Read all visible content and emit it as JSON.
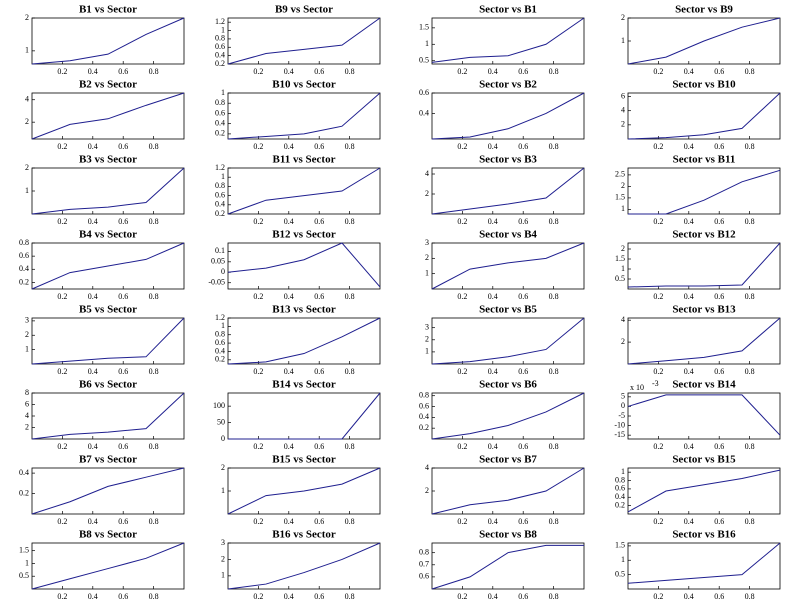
{
  "chart_data": [
    {
      "type": "line",
      "title": "B1 vs Sector",
      "x": [
        0,
        0.25,
        0.5,
        0.75,
        1
      ],
      "values": [
        0.6,
        0.7,
        0.9,
        1.5,
        2
      ],
      "color": "#1f1f8f",
      "xlim": [
        0,
        1
      ],
      "xticks": [
        0.2,
        0.4,
        0.6,
        0.8
      ],
      "ylim": [
        0.6,
        2
      ],
      "yticks": [
        1,
        2
      ]
    },
    {
      "type": "line",
      "title": "B2 vs Sector",
      "x": [
        0,
        0.25,
        0.5,
        0.75,
        1
      ],
      "values": [
        0.5,
        1.8,
        2.3,
        3.5,
        4.6
      ],
      "color": "#1f1f8f",
      "xlim": [
        0,
        1
      ],
      "xticks": [
        0.2,
        0.4,
        0.6,
        0.8
      ],
      "ylim": [
        0.5,
        4.6
      ],
      "yticks": [
        2,
        4
      ]
    },
    {
      "type": "line",
      "title": "B3 vs Sector",
      "x": [
        0,
        0.25,
        0.5,
        0.75,
        1
      ],
      "values": [
        0,
        0.2,
        0.3,
        0.5,
        2
      ],
      "color": "#1f1f8f",
      "xlim": [
        0,
        1
      ],
      "xticks": [
        0.2,
        0.4,
        0.6,
        0.8
      ],
      "ylim": [
        0,
        2
      ],
      "yticks": [
        1,
        2
      ]
    },
    {
      "type": "line",
      "title": "B4 vs Sector",
      "x": [
        0,
        0.25,
        0.5,
        0.75,
        1
      ],
      "values": [
        0.1,
        0.35,
        0.45,
        0.55,
        0.8
      ],
      "color": "#1f1f8f",
      "xlim": [
        0,
        1
      ],
      "xticks": [
        0.2,
        0.4,
        0.6,
        0.8
      ],
      "ylim": [
        0.1,
        0.8
      ],
      "yticks": [
        0.2,
        0.4,
        0.6,
        0.8
      ]
    },
    {
      "type": "line",
      "title": "B5 vs Sector",
      "x": [
        0,
        0.25,
        0.5,
        0.75,
        1
      ],
      "values": [
        0,
        0.2,
        0.4,
        0.5,
        3.2
      ],
      "color": "#1f1f8f",
      "xlim": [
        0,
        1
      ],
      "xticks": [
        0.2,
        0.4,
        0.6,
        0.8
      ],
      "ylim": [
        0,
        3.2
      ],
      "yticks": [
        1,
        2,
        3
      ]
    },
    {
      "type": "line",
      "title": "B6 vs Sector",
      "x": [
        0,
        0.25,
        0.5,
        0.75,
        1
      ],
      "values": [
        0,
        0.8,
        1.2,
        1.8,
        8
      ],
      "color": "#1f1f8f",
      "xlim": [
        0,
        1
      ],
      "xticks": [
        0.2,
        0.4,
        0.6,
        0.8
      ],
      "ylim": [
        0,
        8
      ],
      "yticks": [
        2,
        4,
        6,
        8
      ]
    },
    {
      "type": "line",
      "title": "B7 vs Sector",
      "x": [
        0,
        0.25,
        0.5,
        0.75,
        1
      ],
      "values": [
        0,
        0.12,
        0.27,
        0.36,
        0.45
      ],
      "color": "#1f1f8f",
      "xlim": [
        0,
        1
      ],
      "xticks": [
        0.2,
        0.4,
        0.6,
        0.8
      ],
      "ylim": [
        0,
        0.45
      ],
      "yticks": [
        0.2,
        0.4
      ]
    },
    {
      "type": "line",
      "title": "B8 vs Sector",
      "x": [
        0,
        0.25,
        0.5,
        0.75,
        1
      ],
      "values": [
        0,
        0.4,
        0.8,
        1.2,
        1.8
      ],
      "color": "#1f1f8f",
      "xlim": [
        0,
        1
      ],
      "xticks": [
        0.2,
        0.4,
        0.6,
        0.8
      ],
      "ylim": [
        0,
        1.8
      ],
      "yticks": [
        0.5,
        1,
        1.5
      ]
    },
    {
      "type": "line",
      "title": "B9 vs Sector",
      "x": [
        0,
        0.25,
        0.5,
        0.75,
        1
      ],
      "values": [
        0.2,
        0.45,
        0.55,
        0.65,
        1.3
      ],
      "color": "#1f1f8f",
      "xlim": [
        0,
        1
      ],
      "xticks": [
        0.2,
        0.4,
        0.6,
        0.8
      ],
      "ylim": [
        0.2,
        1.3
      ],
      "yticks": [
        0.2,
        0.4,
        0.6,
        0.8,
        1,
        1.2
      ]
    },
    {
      "type": "line",
      "title": "B10 vs Sector",
      "x": [
        0,
        0.25,
        0.5,
        0.75,
        1
      ],
      "values": [
        0.1,
        0.15,
        0.2,
        0.35,
        1
      ],
      "color": "#1f1f8f",
      "xlim": [
        0,
        1
      ],
      "xticks": [
        0.2,
        0.4,
        0.6,
        0.8
      ],
      "ylim": [
        0.1,
        1
      ],
      "yticks": [
        0.2,
        0.4,
        0.6,
        0.8,
        1
      ]
    },
    {
      "type": "line",
      "title": "B11 vs Sector",
      "x": [
        0,
        0.25,
        0.5,
        0.75,
        1
      ],
      "values": [
        0.2,
        0.5,
        0.6,
        0.7,
        1.2
      ],
      "color": "#1f1f8f",
      "xlim": [
        0,
        1
      ],
      "xticks": [
        0.2,
        0.4,
        0.6,
        0.8
      ],
      "ylim": [
        0.2,
        1.2
      ],
      "yticks": [
        0.2,
        0.4,
        0.6,
        0.8,
        1,
        1.2
      ]
    },
    {
      "type": "line",
      "title": "B12 vs Sector",
      "x": [
        0,
        0.25,
        0.5,
        0.75,
        1
      ],
      "values": [
        0,
        0.02,
        0.06,
        0.14,
        -0.07
      ],
      "color": "#1f1f8f",
      "xlim": [
        0,
        1
      ],
      "xticks": [
        0.2,
        0.4,
        0.6,
        0.8
      ],
      "ylim": [
        -0.08,
        0.14
      ],
      "yticks": [
        -0.05,
        0,
        0.05,
        0.1
      ]
    },
    {
      "type": "line",
      "title": "B13 vs Sector",
      "x": [
        0,
        0.25,
        0.5,
        0.75,
        1
      ],
      "values": [
        0.1,
        0.15,
        0.35,
        0.75,
        1.2
      ],
      "color": "#1f1f8f",
      "xlim": [
        0,
        1
      ],
      "xticks": [
        0.2,
        0.4,
        0.6,
        0.8
      ],
      "ylim": [
        0.1,
        1.2
      ],
      "yticks": [
        0.2,
        0.4,
        0.6,
        0.8,
        1,
        1.2
      ]
    },
    {
      "type": "line",
      "title": "B14 vs Sector",
      "x": [
        0,
        0.25,
        0.5,
        0.75,
        1
      ],
      "values": [
        0,
        0,
        0,
        0,
        140
      ],
      "color": "#1f1f8f",
      "xlim": [
        0,
        1
      ],
      "xticks": [
        0.2,
        0.4,
        0.6,
        0.8
      ],
      "ylim": [
        0,
        140
      ],
      "yticks": [
        0,
        50,
        100
      ]
    },
    {
      "type": "line",
      "title": "B15 vs Sector",
      "x": [
        0,
        0.25,
        0.5,
        0.75,
        1
      ],
      "values": [
        0,
        0.8,
        1,
        1.3,
        2
      ],
      "color": "#1f1f8f",
      "xlim": [
        0,
        1
      ],
      "xticks": [
        0.2,
        0.4,
        0.6,
        0.8
      ],
      "ylim": [
        0,
        2
      ],
      "yticks": [
        1,
        2
      ]
    },
    {
      "type": "line",
      "title": "B16 vs Sector",
      "x": [
        0,
        0.25,
        0.5,
        0.75,
        1
      ],
      "values": [
        0.2,
        0.5,
        1.2,
        2,
        3
      ],
      "color": "#1f1f8f",
      "xlim": [
        0,
        1
      ],
      "xticks": [
        0.2,
        0.4,
        0.6,
        0.8
      ],
      "ylim": [
        0.2,
        3
      ],
      "yticks": [
        1,
        2,
        3
      ]
    },
    {
      "type": "line",
      "title": "Sector vs B1",
      "x": [
        0,
        0.25,
        0.5,
        0.75,
        1
      ],
      "values": [
        0.45,
        0.6,
        0.65,
        1,
        1.8
      ],
      "color": "#1f1f8f",
      "xlim": [
        0,
        1
      ],
      "xticks": [
        0.2,
        0.4,
        0.6,
        0.8
      ],
      "ylim": [
        0.4,
        1.8
      ],
      "yticks": [
        0.5,
        1,
        1.5
      ]
    },
    {
      "type": "line",
      "title": "Sector vs B2",
      "x": [
        0,
        0.25,
        0.5,
        0.75,
        1
      ],
      "values": [
        0.15,
        0.17,
        0.25,
        0.4,
        0.6
      ],
      "color": "#1f1f8f",
      "xlim": [
        0,
        1
      ],
      "xticks": [
        0.2,
        0.4,
        0.6,
        0.8
      ],
      "ylim": [
        0.15,
        0.6
      ],
      "yticks": [
        0.4,
        0.6
      ]
    },
    {
      "type": "line",
      "title": "Sector vs B3",
      "x": [
        0,
        0.25,
        0.5,
        0.75,
        1
      ],
      "values": [
        0,
        0.5,
        1,
        1.6,
        4.6
      ],
      "color": "#1f1f8f",
      "xlim": [
        0,
        1
      ],
      "xticks": [
        0.2,
        0.4,
        0.6,
        0.8
      ],
      "ylim": [
        0,
        4.6
      ],
      "yticks": [
        2,
        4
      ]
    },
    {
      "type": "line",
      "title": "Sector vs B4",
      "x": [
        0,
        0.25,
        0.5,
        0.75,
        1
      ],
      "values": [
        0,
        1.3,
        1.7,
        2,
        3
      ],
      "color": "#1f1f8f",
      "xlim": [
        0,
        1
      ],
      "xticks": [
        0.2,
        0.4,
        0.6,
        0.8
      ],
      "ylim": [
        0,
        3
      ],
      "yticks": [
        1,
        2,
        3
      ]
    },
    {
      "type": "line",
      "title": "Sector vs B5",
      "x": [
        0,
        0.25,
        0.5,
        0.75,
        1
      ],
      "values": [
        0,
        0.2,
        0.6,
        1.2,
        3.8
      ],
      "color": "#1f1f8f",
      "xlim": [
        0,
        1
      ],
      "xticks": [
        0.2,
        0.4,
        0.6,
        0.8
      ],
      "ylim": [
        0,
        3.8
      ],
      "yticks": [
        1,
        2,
        3
      ]
    },
    {
      "type": "line",
      "title": "Sector vs B6",
      "x": [
        0,
        0.25,
        0.5,
        0.75,
        1
      ],
      "values": [
        0,
        0.1,
        0.25,
        0.5,
        0.85
      ],
      "color": "#1f1f8f",
      "xlim": [
        0,
        1
      ],
      "xticks": [
        0.2,
        0.4,
        0.6,
        0.8
      ],
      "ylim": [
        0,
        0.85
      ],
      "yticks": [
        0.2,
        0.4,
        0.6,
        0.8
      ]
    },
    {
      "type": "line",
      "title": "Sector vs B7",
      "x": [
        0,
        0.25,
        0.5,
        0.75,
        1
      ],
      "values": [
        0,
        0.8,
        1.2,
        2,
        4
      ],
      "color": "#1f1f8f",
      "xlim": [
        0,
        1
      ],
      "xticks": [
        0.2,
        0.4,
        0.6,
        0.8
      ],
      "ylim": [
        0,
        4
      ],
      "yticks": [
        2,
        4
      ]
    },
    {
      "type": "line",
      "title": "Sector vs B8",
      "x": [
        0,
        0.25,
        0.5,
        0.75,
        1
      ],
      "values": [
        0.5,
        0.6,
        0.8,
        0.86,
        0.86
      ],
      "color": "#1f1f8f",
      "xlim": [
        0,
        1
      ],
      "xticks": [
        0.2,
        0.4,
        0.6,
        0.8
      ],
      "ylim": [
        0.5,
        0.88
      ],
      "yticks": [
        0.6,
        0.7,
        0.8
      ]
    },
    {
      "type": "line",
      "title": "Sector vs B9",
      "x": [
        0,
        0.25,
        0.5,
        0.75,
        1
      ],
      "values": [
        0,
        0.3,
        1,
        1.6,
        2
      ],
      "color": "#1f1f8f",
      "xlim": [
        0,
        1
      ],
      "xticks": [
        0.2,
        0.4,
        0.6,
        0.8
      ],
      "ylim": [
        0,
        2
      ],
      "yticks": [
        1,
        2
      ]
    },
    {
      "type": "line",
      "title": "Sector vs B10",
      "x": [
        0,
        0.25,
        0.5,
        0.75,
        1
      ],
      "values": [
        0,
        0.2,
        0.6,
        1.5,
        6.5
      ],
      "color": "#1f1f8f",
      "xlim": [
        0,
        1
      ],
      "xticks": [
        0.2,
        0.4,
        0.6,
        0.8
      ],
      "ylim": [
        0,
        6.5
      ],
      "yticks": [
        2,
        4,
        6
      ]
    },
    {
      "type": "line",
      "title": "Sector vs B11",
      "x": [
        0,
        0.25,
        0.5,
        0.75,
        1
      ],
      "values": [
        0.8,
        0.8,
        1.4,
        2.2,
        2.7
      ],
      "color": "#1f1f8f",
      "xlim": [
        0,
        1
      ],
      "xticks": [
        0.2,
        0.4,
        0.6,
        0.8
      ],
      "ylim": [
        0.8,
        2.8
      ],
      "yticks": [
        1,
        1.5,
        2,
        2.5
      ]
    },
    {
      "type": "line",
      "title": "Sector vs B12",
      "x": [
        0,
        0.25,
        0.5,
        0.75,
        1
      ],
      "values": [
        0.1,
        0.15,
        0.15,
        0.2,
        2.3
      ],
      "color": "#1f1f8f",
      "xlim": [
        0,
        1
      ],
      "xticks": [
        0.2,
        0.4,
        0.6,
        0.8
      ],
      "ylim": [
        0,
        2.3
      ],
      "yticks": [
        0.5,
        1,
        1.5,
        2
      ]
    },
    {
      "type": "line",
      "title": "Sector vs B13",
      "x": [
        0,
        0.25,
        0.5,
        0.75,
        1
      ],
      "values": [
        0,
        0.3,
        0.6,
        1.2,
        4.2
      ],
      "color": "#1f1f8f",
      "xlim": [
        0,
        1
      ],
      "xticks": [
        0.2,
        0.4,
        0.6,
        0.8
      ],
      "ylim": [
        0,
        4.2
      ],
      "yticks": [
        2,
        4
      ]
    },
    {
      "type": "line",
      "title": "Sector vs B14",
      "x": [
        0,
        0.25,
        0.5,
        0.75,
        1
      ],
      "values": [
        0,
        6,
        6,
        6,
        -15
      ],
      "color": "#1f1f8f",
      "xlim": [
        0,
        1
      ],
      "xticks": [
        0.2,
        0.4,
        0.6,
        0.8
      ],
      "ylim": [
        -17,
        7
      ],
      "yticks": [
        -15,
        -10,
        -5,
        0,
        5
      ],
      "y_multiplier": {
        "base": "x 10",
        "exponent": "-3"
      }
    },
    {
      "type": "line",
      "title": "Sector vs B15",
      "x": [
        0,
        0.25,
        0.5,
        0.75,
        1
      ],
      "values": [
        0.05,
        0.55,
        0.7,
        0.85,
        1.05
      ],
      "color": "#1f1f8f",
      "xlim": [
        0,
        1
      ],
      "xticks": [
        0.2,
        0.4,
        0.6,
        0.8
      ],
      "ylim": [
        0,
        1.1
      ],
      "yticks": [
        0.2,
        0.4,
        0.6,
        0.8,
        1
      ]
    },
    {
      "type": "line",
      "title": "Sector vs B16",
      "x": [
        0,
        0.25,
        0.5,
        0.75,
        1
      ],
      "values": [
        0.2,
        0.3,
        0.4,
        0.5,
        1.6
      ],
      "color": "#1f1f8f",
      "xlim": [
        0,
        1
      ],
      "xticks": [
        0.2,
        0.4,
        0.6,
        0.8
      ],
      "ylim": [
        0,
        1.6
      ],
      "yticks": [
        0.5,
        1,
        1.5
      ]
    }
  ]
}
